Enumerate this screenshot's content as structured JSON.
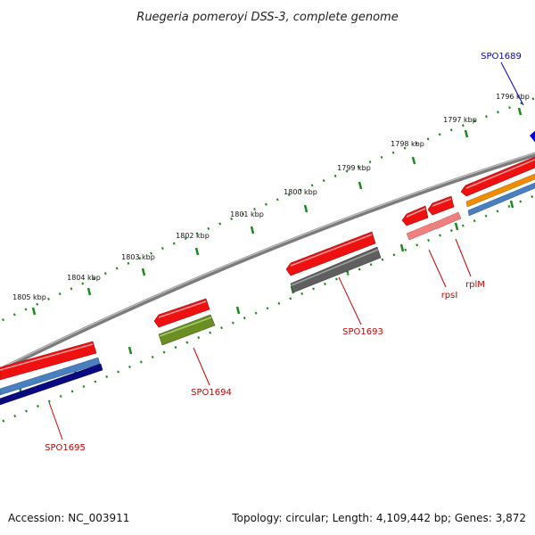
{
  "title": "Ruegeria pomeroyi DSS-3, complete genome",
  "ticks": [
    "1796 kbp",
    "1797 kbp",
    "1798 kbp",
    "1799 kbp",
    "1800 kbp",
    "1801 kbp",
    "1802 kbp",
    "1803 kbp",
    "1804 kbp",
    "1805 kbp"
  ],
  "genes": [
    {
      "label": "SPO1689",
      "color": "#0000cc"
    },
    {
      "label": "rplM",
      "color": "#cc0000"
    },
    {
      "label": "rpsI",
      "color": "#cc0000"
    },
    {
      "label": "SPO1693",
      "color": "#cc0000"
    },
    {
      "label": "SPO1694",
      "color": "#cc0000"
    },
    {
      "label": "SPO1695",
      "color": "#cc0000"
    }
  ],
  "colors": {
    "backbone": "#8a8a8a",
    "tick_dots": "#1a8a1a",
    "gene_red": "#ee1111",
    "gene_gray": "#5f5f5f",
    "gene_olive": "#6b8e23",
    "gene_pink": "#f07f7f",
    "gene_orange": "#f08c00",
    "gene_steelblue": "#4a7fbf",
    "gene_navy": "#0a0a80",
    "gene_blue": "#0000dd"
  },
  "footer": {
    "accession": "Accession: NC_003911",
    "summary": "Topology: circular; Length: 4,109,442 bp; Genes: 3,872"
  }
}
